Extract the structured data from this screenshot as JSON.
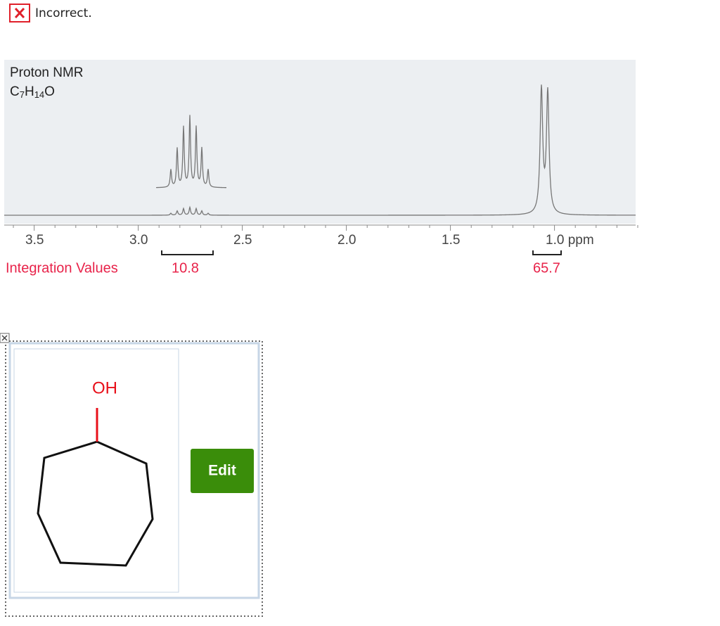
{
  "feedback": {
    "status": "Incorrect."
  },
  "spectrum": {
    "title": "Proton NMR",
    "formula_parts": [
      "C",
      "7",
      "H",
      "14",
      "O"
    ],
    "axis_ticks": [
      "3.5",
      "3.0",
      "2.5",
      "2.0",
      "1.5",
      "1.0 ppm"
    ],
    "integration_label": "Integration Values",
    "integration_values": [
      "10.8",
      "65.7"
    ]
  },
  "editor": {
    "atom_label": "OH",
    "button": "Edit"
  }
}
